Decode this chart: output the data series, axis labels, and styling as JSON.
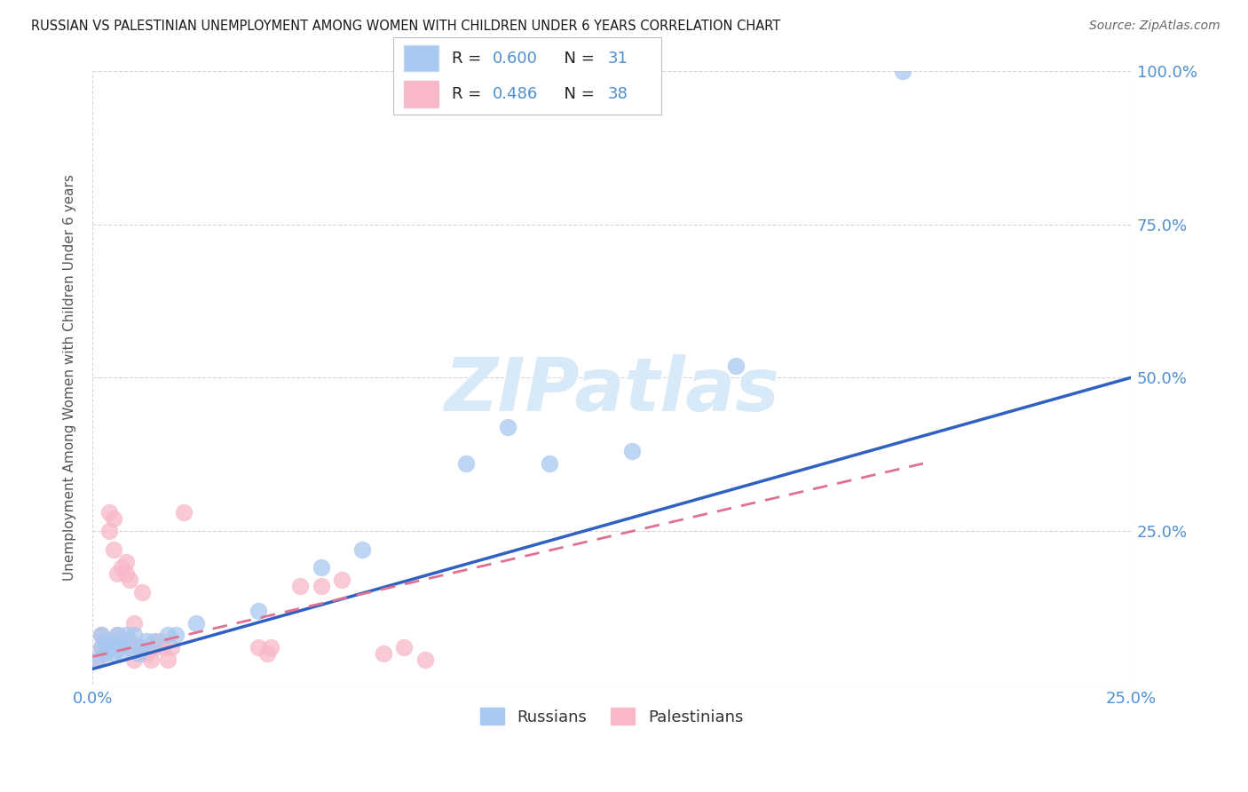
{
  "title": "RUSSIAN VS PALESTINIAN UNEMPLOYMENT AMONG WOMEN WITH CHILDREN UNDER 6 YEARS CORRELATION CHART",
  "source": "Source: ZipAtlas.com",
  "ylabel_label": "Unemployment Among Women with Children Under 6 years",
  "legend_russian": "Russians",
  "legend_palestinian": "Palestinians",
  "russian_R": "0.600",
  "russian_N": "31",
  "palestinian_R": "0.486",
  "palestinian_N": "38",
  "russian_color": "#a8c8f0",
  "palestinian_color": "#f8b8c8",
  "russian_line_color": "#3060c0",
  "palestinian_line_color": "#e07090",
  "watermark_color": "#d8eaf8",
  "watermark": "ZIPatlas",
  "background_color": "#ffffff",
  "xlim": [
    0,
    0.25
  ],
  "ylim": [
    0,
    1.0
  ],
  "tick_color": "#5090d0",
  "grid_color": "#cccccc",
  "russians_x": [
    0.001,
    0.002,
    0.002,
    0.003,
    0.003,
    0.004,
    0.005,
    0.005,
    0.006,
    0.006,
    0.007,
    0.007,
    0.008,
    0.009,
    0.01,
    0.011,
    0.012,
    0.013,
    0.015,
    0.018,
    0.02,
    0.025,
    0.04,
    0.055,
    0.065,
    0.09,
    0.1,
    0.11,
    0.13,
    0.155,
    0.195
  ],
  "russians_y": [
    0.04,
    0.06,
    0.08,
    0.05,
    0.07,
    0.06,
    0.07,
    0.05,
    0.08,
    0.06,
    0.07,
    0.05,
    0.08,
    0.06,
    0.08,
    0.05,
    0.06,
    0.07,
    0.07,
    0.08,
    0.08,
    0.1,
    0.12,
    0.19,
    0.22,
    0.36,
    0.42,
    0.36,
    0.38,
    0.52,
    1.0
  ],
  "palestinians_x": [
    0.001,
    0.002,
    0.002,
    0.003,
    0.003,
    0.004,
    0.004,
    0.005,
    0.005,
    0.006,
    0.006,
    0.007,
    0.007,
    0.008,
    0.008,
    0.009,
    0.009,
    0.01,
    0.01,
    0.011,
    0.012,
    0.013,
    0.014,
    0.015,
    0.016,
    0.017,
    0.018,
    0.019,
    0.022,
    0.04,
    0.042,
    0.043,
    0.05,
    0.055,
    0.06,
    0.07,
    0.075,
    0.08
  ],
  "palestinians_y": [
    0.04,
    0.06,
    0.08,
    0.05,
    0.07,
    0.25,
    0.28,
    0.22,
    0.27,
    0.08,
    0.18,
    0.19,
    0.07,
    0.2,
    0.18,
    0.17,
    0.07,
    0.1,
    0.04,
    0.06,
    0.15,
    0.05,
    0.04,
    0.06,
    0.07,
    0.06,
    0.04,
    0.06,
    0.28,
    0.06,
    0.05,
    0.06,
    0.16,
    0.16,
    0.17,
    0.05,
    0.06,
    0.04
  ],
  "russian_line_x": [
    0.0,
    0.25
  ],
  "russian_line_y": [
    0.025,
    0.5
  ],
  "palestinian_line_x": [
    0.0,
    0.2
  ],
  "palestinian_line_y": [
    0.045,
    0.36
  ]
}
